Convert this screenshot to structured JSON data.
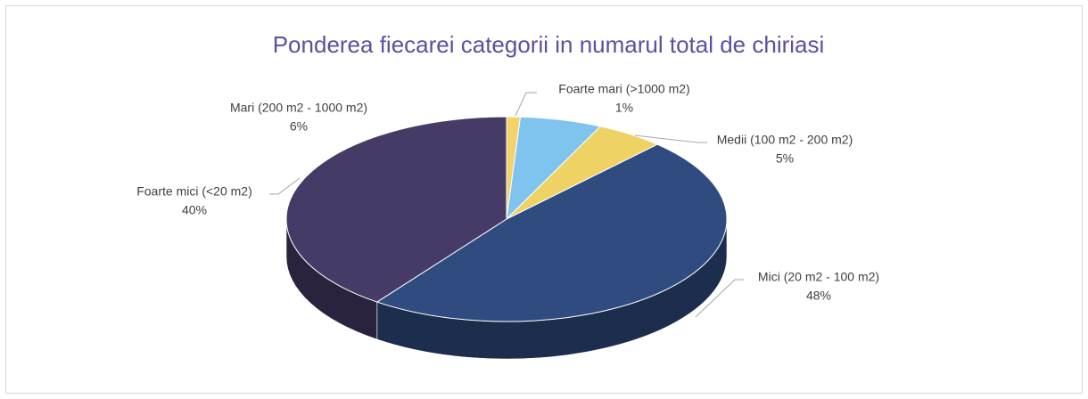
{
  "chart_data": {
    "type": "pie",
    "title": "Ponderea fiecarei categorii in numarul total de chiriasi",
    "categories": [
      "Foarte mari (>1000 m2)",
      "Mari (200 m2 - 1000 m2)",
      "Medii (100 m2 - 200 m2)",
      "Mici (20 m2 - 100 m2)",
      "Foarte mici (<20 m2)"
    ],
    "values": [
      1,
      6,
      5,
      48,
      40
    ],
    "value_labels": [
      "1%",
      "6%",
      "5%",
      "48%",
      "40%"
    ],
    "colors": [
      "#f2d36a",
      "#7fc4ee",
      "#efd264",
      "#2f4b80",
      "#463b66"
    ]
  }
}
